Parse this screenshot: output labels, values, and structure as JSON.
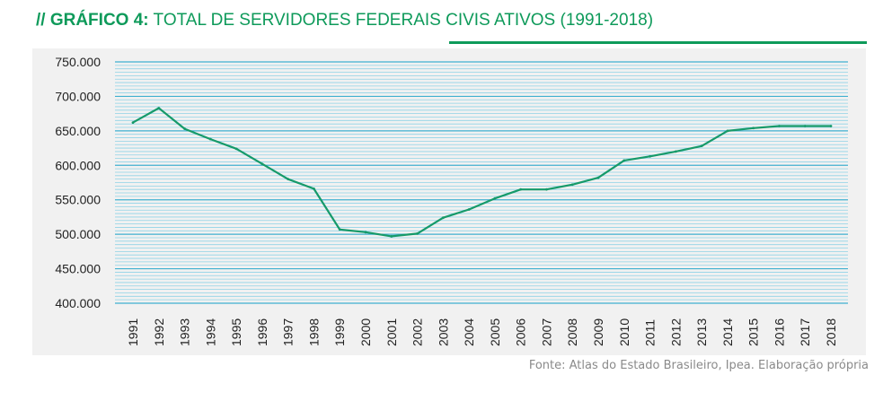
{
  "header": {
    "title_prefix": "// GRÁFICO 4:",
    "title_text": " TOTAL DE SERVIDORES FEDERAIS CIVIS ATIVOS (1991-2018)"
  },
  "footer": {
    "source": "Fonte: Atlas do Estado Brasileiro, Ipea. Elaboração própria"
  },
  "colors": {
    "accent": "#0e9a5a",
    "line": "#169a6a",
    "grid_major": "#3fb0cf",
    "grid_minor": "#8fd3e6",
    "panel": "#f1f1f1"
  },
  "chart_data": {
    "type": "line",
    "title": "TOTAL DE SERVIDORES FEDERAIS CIVIS ATIVOS (1991-2018)",
    "xlabel": "",
    "ylabel": "",
    "ylim": [
      400000,
      750000
    ],
    "yticks": [
      400000,
      450000,
      500000,
      550000,
      600000,
      650000,
      700000,
      750000
    ],
    "ytick_labels": [
      "400.000",
      "450.000",
      "500.000",
      "550.000",
      "600.000",
      "650.000",
      "700.000",
      "750.000"
    ],
    "grid": true,
    "legend": "none",
    "x": [
      "1991",
      "1992",
      "1993",
      "1994",
      "1995",
      "1996",
      "1997",
      "1998",
      "1999",
      "2000",
      "2001",
      "2002",
      "2003",
      "2004",
      "2005",
      "2006",
      "2007",
      "2008",
      "2009",
      "2010",
      "2011",
      "2012",
      "2013",
      "2014",
      "2015",
      "2016",
      "2017",
      "2018"
    ],
    "series": [
      {
        "values": [
          662000,
          683000,
          653000,
          638000,
          624000,
          602000,
          580000,
          566000,
          507000,
          503000,
          497000,
          501000,
          524000,
          536000,
          552000,
          565000,
          565000,
          572000,
          582000,
          607000,
          613000,
          620000,
          628000,
          650000,
          654000,
          657000,
          657000,
          657000
        ]
      }
    ]
  }
}
